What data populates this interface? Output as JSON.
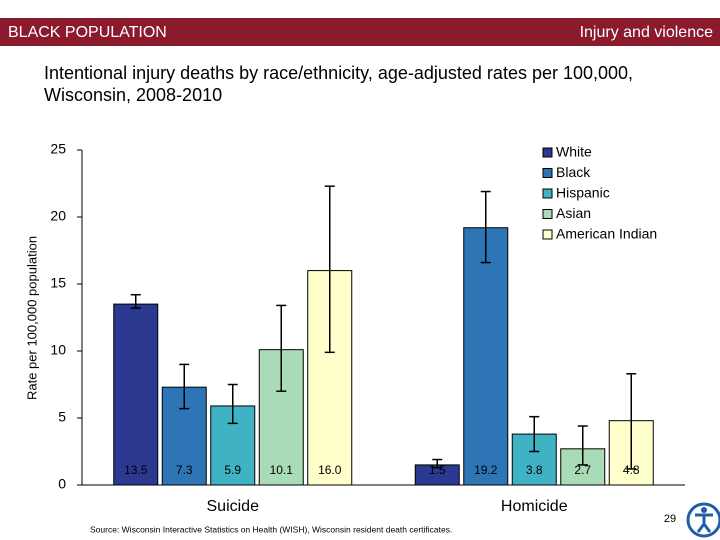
{
  "header": {
    "left": "BLACK POPULATION",
    "right": "Injury and violence"
  },
  "chart_data": {
    "type": "bar",
    "title": "Intentional injury deaths by race/ethnicity, age-adjusted rates per 100,000, Wisconsin, 2008-2010",
    "ylabel": "Rate per 100,000 population",
    "categories": [
      "Suicide",
      "Homicide"
    ],
    "series": [
      {
        "name": "White",
        "color": "#2b3990",
        "values": [
          13.5,
          1.5
        ],
        "value_labels": [
          "13.5",
          "1.5"
        ],
        "ci_low": [
          13.2,
          1.3
        ],
        "ci_high": [
          14.2,
          1.9
        ]
      },
      {
        "name": "Black",
        "color": "#2e75b6",
        "values": [
          7.3,
          19.2
        ],
        "value_labels": [
          "7.3",
          "19.2"
        ],
        "ci_low": [
          5.7,
          16.6
        ],
        "ci_high": [
          9.0,
          21.9
        ]
      },
      {
        "name": "Hispanic",
        "color": "#3fb3c3",
        "values": [
          5.9,
          3.8
        ],
        "value_labels": [
          "5.9",
          "3.8"
        ],
        "ci_low": [
          4.6,
          2.5
        ],
        "ci_high": [
          7.5,
          5.1
        ]
      },
      {
        "name": "Asian",
        "color": "#a9dbb6",
        "values": [
          10.1,
          2.7
        ],
        "value_labels": [
          "10.1",
          "2.7"
        ],
        "ci_low": [
          7.0,
          1.5
        ],
        "ci_high": [
          13.4,
          4.4
        ]
      },
      {
        "name": "American Indian",
        "color": "#ffffcc",
        "values": [
          16.0,
          4.8
        ],
        "value_labels": [
          "16.0",
          "4.8"
        ],
        "ci_low": [
          9.9,
          1.2
        ],
        "ci_high": [
          22.3,
          8.3
        ]
      }
    ],
    "ylim": [
      0,
      25
    ],
    "yticks": [
      0,
      5,
      10,
      15,
      20,
      25
    ],
    "grid": false,
    "legend": "upper right"
  },
  "footer": {
    "source": "Source: Wisconsin Interactive Statistics on Health (WISH), Wisconsin resident death certificates.",
    "page": "29"
  }
}
